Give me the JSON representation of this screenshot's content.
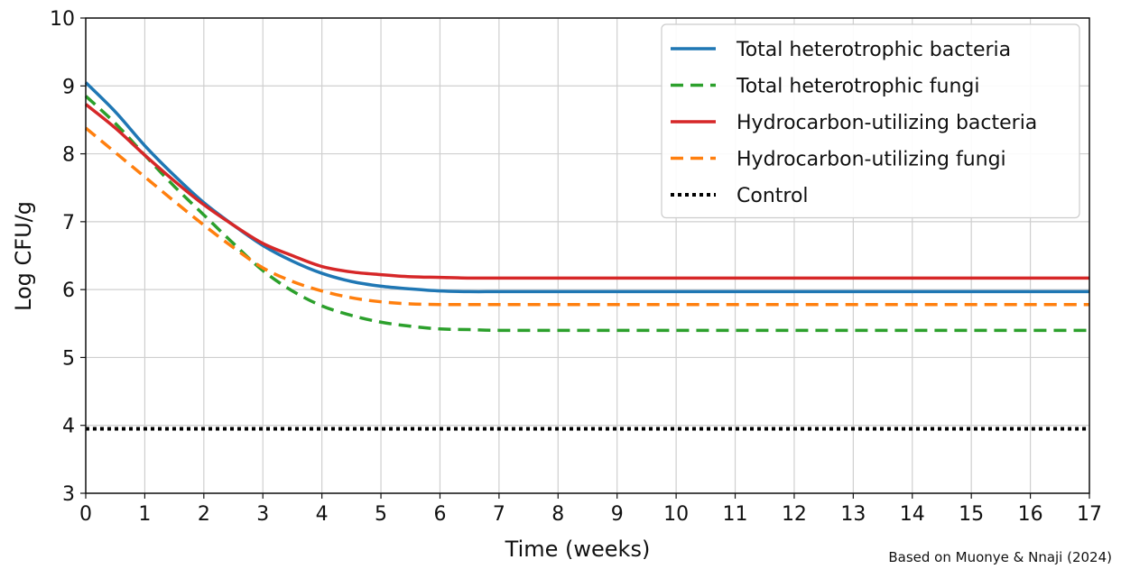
{
  "chart_data": {
    "type": "line",
    "title": "",
    "xlabel": "Time (weeks)",
    "ylabel": "Log CFU/g",
    "xlim": [
      0,
      17
    ],
    "ylim": [
      3,
      10
    ],
    "xticks": [
      0,
      1,
      2,
      3,
      4,
      5,
      6,
      7,
      8,
      9,
      10,
      11,
      12,
      13,
      14,
      15,
      16,
      17
    ],
    "yticks": [
      3,
      4,
      5,
      6,
      7,
      8,
      9,
      10
    ],
    "grid": true,
    "legend_position": "top-right",
    "x": [
      0,
      0.5,
      1,
      1.5,
      2,
      2.5,
      3,
      3.5,
      4,
      4.5,
      5,
      5.5,
      6,
      6.5,
      7,
      8,
      9,
      10,
      11,
      12,
      13,
      14,
      15,
      16,
      17
    ],
    "series": [
      {
        "name": "Total heterotrophic bacteria",
        "color": "#1f77b4",
        "style": "solid",
        "values": [
          9.05,
          8.62,
          8.12,
          7.68,
          7.28,
          6.95,
          6.65,
          6.42,
          6.24,
          6.12,
          6.05,
          6.01,
          5.98,
          5.97,
          5.97,
          5.97,
          5.97,
          5.97,
          5.97,
          5.97,
          5.97,
          5.97,
          5.97,
          5.97,
          5.97
        ]
      },
      {
        "name": "Total heterotrophic fungi",
        "color": "#2ca02c",
        "style": "dashed",
        "values": [
          8.85,
          8.45,
          7.98,
          7.52,
          7.1,
          6.68,
          6.28,
          5.98,
          5.76,
          5.62,
          5.52,
          5.46,
          5.42,
          5.41,
          5.4,
          5.4,
          5.4,
          5.4,
          5.4,
          5.4,
          5.4,
          5.4,
          5.4,
          5.4,
          5.4
        ]
      },
      {
        "name": "Hydrocarbon-utilizing bacteria",
        "color": "#d62728",
        "style": "solid",
        "values": [
          8.73,
          8.38,
          7.98,
          7.6,
          7.25,
          6.95,
          6.68,
          6.5,
          6.34,
          6.26,
          6.22,
          6.19,
          6.18,
          6.17,
          6.17,
          6.17,
          6.17,
          6.17,
          6.17,
          6.17,
          6.17,
          6.17,
          6.17,
          6.17,
          6.17
        ]
      },
      {
        "name": "Hydrocarbon-utilizing fungi",
        "color": "#ff7f0e",
        "style": "dashed",
        "values": [
          8.38,
          8.02,
          7.66,
          7.3,
          6.95,
          6.62,
          6.32,
          6.12,
          5.98,
          5.88,
          5.82,
          5.79,
          5.78,
          5.78,
          5.78,
          5.78,
          5.78,
          5.78,
          5.78,
          5.78,
          5.78,
          5.78,
          5.78,
          5.78,
          5.78
        ]
      },
      {
        "name": "Control",
        "color": "#000000",
        "style": "dotted",
        "values": [
          3.95,
          3.95,
          3.95,
          3.95,
          3.95,
          3.95,
          3.95,
          3.95,
          3.95,
          3.95,
          3.95,
          3.95,
          3.95,
          3.95,
          3.95,
          3.95,
          3.95,
          3.95,
          3.95,
          3.95,
          3.95,
          3.95,
          3.95,
          3.95,
          3.95
        ]
      }
    ],
    "annotation": "Based on Muonye & Nnaji (2024)"
  }
}
